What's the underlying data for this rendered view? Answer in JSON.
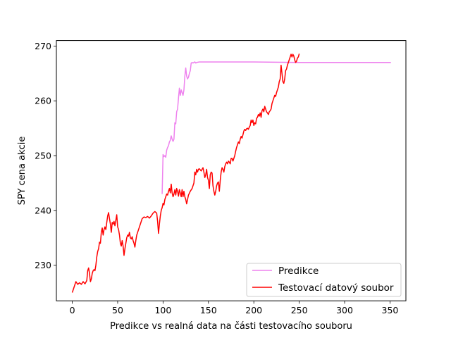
{
  "chart_data": {
    "type": "line",
    "xlabel": "Predikce vs realná data na části testovacího souboru",
    "ylabel": "SPY cena akcie",
    "xlim": [
      -17.5,
      367.5
    ],
    "ylim": [
      223.5,
      271.0
    ],
    "x_ticks": [
      0,
      50,
      100,
      150,
      200,
      250,
      300,
      350
    ],
    "y_ticks": [
      230,
      240,
      250,
      260,
      270
    ],
    "grid": false,
    "legend_position": "lower-right",
    "series": [
      {
        "name": "Predikce",
        "color": "#ee82ee",
        "points": [
          [
            99,
            243.0
          ],
          [
            100,
            250.2
          ],
          [
            101,
            249.8
          ],
          [
            102,
            250.0
          ],
          [
            103,
            249.7
          ],
          [
            104,
            251.0
          ],
          [
            105,
            251.5
          ],
          [
            106,
            251.8
          ],
          [
            107,
            252.5
          ],
          [
            108,
            252.8
          ],
          [
            109,
            253.6
          ],
          [
            110,
            253.0
          ],
          [
            111,
            252.6
          ],
          [
            112,
            253.0
          ],
          [
            113,
            256.0
          ],
          [
            114,
            255.8
          ],
          [
            115,
            258.0
          ],
          [
            116,
            258.5
          ],
          [
            117,
            260.5
          ],
          [
            118,
            262.3
          ],
          [
            119,
            261.0
          ],
          [
            120,
            262.0
          ],
          [
            121,
            261.5
          ],
          [
            122,
            261.0
          ],
          [
            123,
            262.0
          ],
          [
            124,
            264.5
          ],
          [
            125,
            266.0
          ],
          [
            126,
            264.5
          ],
          [
            127,
            264.0
          ],
          [
            128,
            264.3
          ],
          [
            129,
            265.0
          ],
          [
            130,
            265.5
          ],
          [
            131,
            266.9
          ],
          [
            132,
            267.0
          ],
          [
            133,
            266.9
          ],
          [
            134,
            267.0
          ],
          [
            135,
            267.1
          ],
          [
            136,
            266.9
          ],
          [
            137,
            267.0
          ],
          [
            140,
            267.1
          ],
          [
            160,
            267.1
          ],
          [
            200,
            267.1
          ],
          [
            250,
            267.0
          ],
          [
            300,
            267.0
          ],
          [
            351,
            267.0
          ]
        ]
      },
      {
        "name": "Testovací datový soubor",
        "color": "#ff0000",
        "points": [
          [
            0,
            225.0
          ],
          [
            2,
            226.0
          ],
          [
            4,
            227.0
          ],
          [
            6,
            226.5
          ],
          [
            8,
            226.8
          ],
          [
            10,
            226.5
          ],
          [
            12,
            227.0
          ],
          [
            14,
            226.6
          ],
          [
            16,
            227.2
          ],
          [
            17,
            229.0
          ],
          [
            18,
            229.5
          ],
          [
            19,
            228.5
          ],
          [
            20,
            227.0
          ],
          [
            21,
            227.5
          ],
          [
            22,
            228.5
          ],
          [
            23,
            229.0
          ],
          [
            24,
            229.2
          ],
          [
            25,
            229.0
          ],
          [
            26,
            230.0
          ],
          [
            27,
            231.5
          ],
          [
            28,
            232.5
          ],
          [
            29,
            233.0
          ],
          [
            30,
            234.2
          ],
          [
            31,
            234.0
          ],
          [
            32,
            236.0
          ],
          [
            33,
            236.8
          ],
          [
            34,
            235.5
          ],
          [
            35,
            236.5
          ],
          [
            36,
            237.0
          ],
          [
            37,
            236.5
          ],
          [
            38,
            237.8
          ],
          [
            39,
            239.0
          ],
          [
            40,
            239.6
          ],
          [
            41,
            238.5
          ],
          [
            42,
            237.5
          ],
          [
            43,
            236.0
          ],
          [
            44,
            237.8
          ],
          [
            45,
            237.5
          ],
          [
            46,
            238.0
          ],
          [
            47,
            237.2
          ],
          [
            48,
            238.2
          ],
          [
            49,
            239.2
          ],
          [
            50,
            237.0
          ],
          [
            51,
            236.5
          ],
          [
            52,
            235.5
          ],
          [
            53,
            234.0
          ],
          [
            54,
            233.5
          ],
          [
            55,
            234.5
          ],
          [
            56,
            233.5
          ],
          [
            57,
            231.8
          ],
          [
            58,
            233.0
          ],
          [
            59,
            234.0
          ],
          [
            60,
            235.0
          ],
          [
            61,
            235.5
          ],
          [
            62,
            235.3
          ],
          [
            63,
            236.0
          ],
          [
            64,
            235.0
          ],
          [
            65,
            234.8
          ],
          [
            66,
            235.2
          ],
          [
            67,
            234.5
          ],
          [
            68,
            234.0
          ],
          [
            69,
            233.3
          ],
          [
            70,
            234.5
          ],
          [
            71,
            235.5
          ],
          [
            72,
            236.0
          ],
          [
            73,
            236.5
          ],
          [
            75,
            237.5
          ],
          [
            77,
            238.5
          ],
          [
            79,
            238.8
          ],
          [
            81,
            238.7
          ],
          [
            83,
            238.9
          ],
          [
            85,
            238.6
          ],
          [
            87,
            239.0
          ],
          [
            89,
            239.5
          ],
          [
            91,
            239.8
          ],
          [
            93,
            239.5
          ],
          [
            94,
            238.0
          ],
          [
            95,
            235.8
          ],
          [
            96,
            237.5
          ],
          [
            97,
            239.0
          ],
          [
            98,
            240.0
          ],
          [
            99,
            240.5
          ],
          [
            100,
            241.3
          ],
          [
            101,
            241.0
          ],
          [
            102,
            242.0
          ],
          [
            103,
            242.5
          ],
          [
            104,
            243.0
          ],
          [
            105,
            242.8
          ],
          [
            106,
            243.5
          ],
          [
            107,
            244.0
          ],
          [
            108,
            243.2
          ],
          [
            109,
            244.8
          ],
          [
            110,
            243.2
          ],
          [
            111,
            242.5
          ],
          [
            112,
            243.0
          ],
          [
            113,
            243.8
          ],
          [
            114,
            242.8
          ],
          [
            115,
            244.0
          ],
          [
            116,
            243.5
          ],
          [
            117,
            242.6
          ],
          [
            118,
            243.8
          ],
          [
            119,
            243.2
          ],
          [
            120,
            242.5
          ],
          [
            121,
            243.8
          ],
          [
            122,
            242.5
          ],
          [
            123,
            243.5
          ],
          [
            124,
            242.5
          ],
          [
            125,
            242.0
          ],
          [
            126,
            241.2
          ],
          [
            127,
            242.0
          ],
          [
            128,
            242.8
          ],
          [
            130,
            243.5
          ],
          [
            132,
            244.0
          ],
          [
            134,
            245.0
          ],
          [
            135,
            247.0
          ],
          [
            136,
            246.5
          ],
          [
            137,
            247.5
          ],
          [
            138,
            247.0
          ],
          [
            139,
            247.5
          ],
          [
            140,
            247.6
          ],
          [
            142,
            247.2
          ],
          [
            144,
            247.8
          ],
          [
            145,
            247.0
          ],
          [
            146,
            246.0
          ],
          [
            147,
            246.5
          ],
          [
            148,
            247.5
          ],
          [
            149,
            246.0
          ],
          [
            150,
            245.5
          ],
          [
            151,
            244.0
          ],
          [
            152,
            246.5
          ],
          [
            153,
            247.0
          ],
          [
            154,
            246.8
          ],
          [
            155,
            244.5
          ],
          [
            156,
            243.5
          ],
          [
            157,
            242.8
          ],
          [
            158,
            243.5
          ],
          [
            159,
            244.5
          ],
          [
            160,
            245.0
          ],
          [
            161,
            245.2
          ],
          [
            162,
            243.5
          ],
          [
            163,
            245.5
          ],
          [
            164,
            247.0
          ],
          [
            165,
            247.8
          ],
          [
            166,
            247.5
          ],
          [
            167,
            247.0
          ],
          [
            168,
            248.0
          ],
          [
            169,
            248.5
          ],
          [
            170,
            248.8
          ],
          [
            171,
            248.5
          ],
          [
            172,
            249.0
          ],
          [
            173,
            248.8
          ],
          [
            174,
            248.5
          ],
          [
            175,
            249.5
          ],
          [
            176,
            249.5
          ],
          [
            177,
            249.0
          ],
          [
            178,
            249.5
          ],
          [
            179,
            250.0
          ],
          [
            180,
            250.8
          ],
          [
            181,
            251.5
          ],
          [
            182,
            252.0
          ],
          [
            183,
            252.5
          ],
          [
            184,
            252.2
          ],
          [
            185,
            253.0
          ],
          [
            186,
            253.5
          ],
          [
            187,
            253.2
          ],
          [
            188,
            253.8
          ],
          [
            189,
            254.5
          ],
          [
            190,
            254.8
          ],
          [
            191,
            254.6
          ],
          [
            192,
            254.9
          ],
          [
            193,
            255.0
          ],
          [
            194,
            254.8
          ],
          [
            195,
            255.2
          ],
          [
            196,
            255.5
          ],
          [
            197,
            256.5
          ],
          [
            198,
            256.0
          ],
          [
            199,
            256.5
          ],
          [
            200,
            255.5
          ],
          [
            201,
            256.0
          ],
          [
            202,
            255.8
          ],
          [
            203,
            256.8
          ],
          [
            204,
            257.0
          ],
          [
            205,
            257.5
          ],
          [
            206,
            257.2
          ],
          [
            207,
            257.8
          ],
          [
            208,
            257.0
          ],
          [
            209,
            258.2
          ],
          [
            210,
            258.5
          ],
          [
            211,
            258.0
          ],
          [
            212,
            259.0
          ],
          [
            213,
            258.5
          ],
          [
            214,
            258.0
          ],
          [
            215,
            257.8
          ],
          [
            216,
            257.5
          ],
          [
            217,
            258.0
          ],
          [
            218,
            258.2
          ],
          [
            219,
            258.5
          ],
          [
            220,
            259.5
          ],
          [
            221,
            260.0
          ],
          [
            222,
            260.5
          ],
          [
            223,
            261.0
          ],
          [
            224,
            260.8
          ],
          [
            225,
            261.5
          ],
          [
            226,
            262.0
          ],
          [
            227,
            262.5
          ],
          [
            228,
            263.5
          ],
          [
            229,
            264.0
          ],
          [
            230,
            266.5
          ],
          [
            231,
            265.0
          ],
          [
            232,
            263.5
          ],
          [
            233,
            263.2
          ],
          [
            234,
            264.0
          ],
          [
            235,
            265.5
          ],
          [
            236,
            265.8
          ],
          [
            237,
            266.5
          ],
          [
            238,
            267.0
          ],
          [
            239,
            267.5
          ],
          [
            240,
            268.0
          ],
          [
            241,
            268.5
          ],
          [
            242,
            268.0
          ],
          [
            243,
            268.5
          ],
          [
            244,
            268.2
          ],
          [
            245,
            267.5
          ],
          [
            246,
            267.0
          ],
          [
            247,
            267.2
          ],
          [
            248,
            267.8
          ],
          [
            249,
            268.0
          ],
          [
            250,
            268.6
          ]
        ]
      }
    ]
  }
}
